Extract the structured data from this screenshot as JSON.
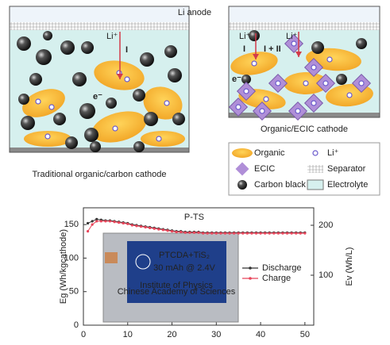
{
  "diagram": {
    "anode_label": "Li anode",
    "left_caption": "Traditional organic/carbon cathode",
    "right_caption": "Organic/ECIC cathode",
    "left_labels": {
      "li": "Li⁺",
      "arrow": "I",
      "electron": "e⁻"
    },
    "right_labels": {
      "li_1": "Li⁺",
      "li_2": "Li⁺",
      "arrow_1": "I",
      "arrow_2": "I + II",
      "electron": "e⁻"
    },
    "legend": [
      "Organic",
      "Li⁺",
      "ECIC",
      "Separator",
      "Carbon black",
      "Electrolyte"
    ]
  },
  "chart_data": {
    "type": "line",
    "title": "P-TS",
    "ylabel": "Eg (Wh/kgcathode)",
    "y2label": "Ev (Wh/L)",
    "x": [
      1,
      2,
      3,
      4,
      5,
      6,
      7,
      8,
      9,
      10,
      11,
      12,
      13,
      14,
      15,
      16,
      17,
      18,
      19,
      20,
      21,
      22,
      23,
      24,
      25,
      26,
      27,
      28,
      29,
      30,
      31,
      32,
      33,
      34,
      35,
      36,
      37,
      38,
      39,
      40,
      41,
      42,
      43,
      44,
      45,
      46,
      47,
      48,
      49,
      50
    ],
    "series": [
      {
        "name": "Discharge",
        "color": "#333333",
        "values": [
          152,
          155,
          158,
          157,
          156,
          156,
          155,
          154,
          153,
          152,
          150,
          149,
          148,
          147,
          146,
          145,
          144,
          143,
          142,
          141,
          140,
          140,
          139,
          139,
          139,
          139,
          138,
          138,
          138,
          138,
          138,
          138,
          138,
          138,
          138,
          138,
          138,
          138,
          138,
          138,
          138,
          138,
          138,
          138,
          138,
          138,
          138,
          138,
          138,
          138
        ]
      },
      {
        "name": "Charge",
        "color": "#e8455a",
        "values": [
          140,
          150,
          155,
          155,
          155,
          155,
          154,
          153,
          152,
          151,
          149,
          148,
          147,
          146,
          145,
          144,
          143,
          142,
          141,
          140,
          139,
          139,
          138,
          138,
          138,
          138,
          137,
          137,
          137,
          137,
          137,
          137,
          137,
          137,
          137,
          137,
          137,
          137,
          137,
          137,
          137,
          137,
          137,
          137,
          137,
          137,
          137,
          137,
          137,
          137
        ]
      }
    ],
    "xlim": [
      0,
      52
    ],
    "xticks": [
      0,
      10,
      20,
      30,
      40,
      50
    ],
    "ylim": [
      0,
      175
    ],
    "yticks": [
      0,
      50,
      100,
      150
    ],
    "y2lim": [
      0,
      235
    ],
    "y2ticks": [
      100,
      200
    ],
    "inset": {
      "title": "PTCDA+TiS₂",
      "spec": "30 mAh @ 2.4V",
      "org_1": "Institute of Physics",
      "org_2": "Chinese Academy of Sciences"
    }
  }
}
